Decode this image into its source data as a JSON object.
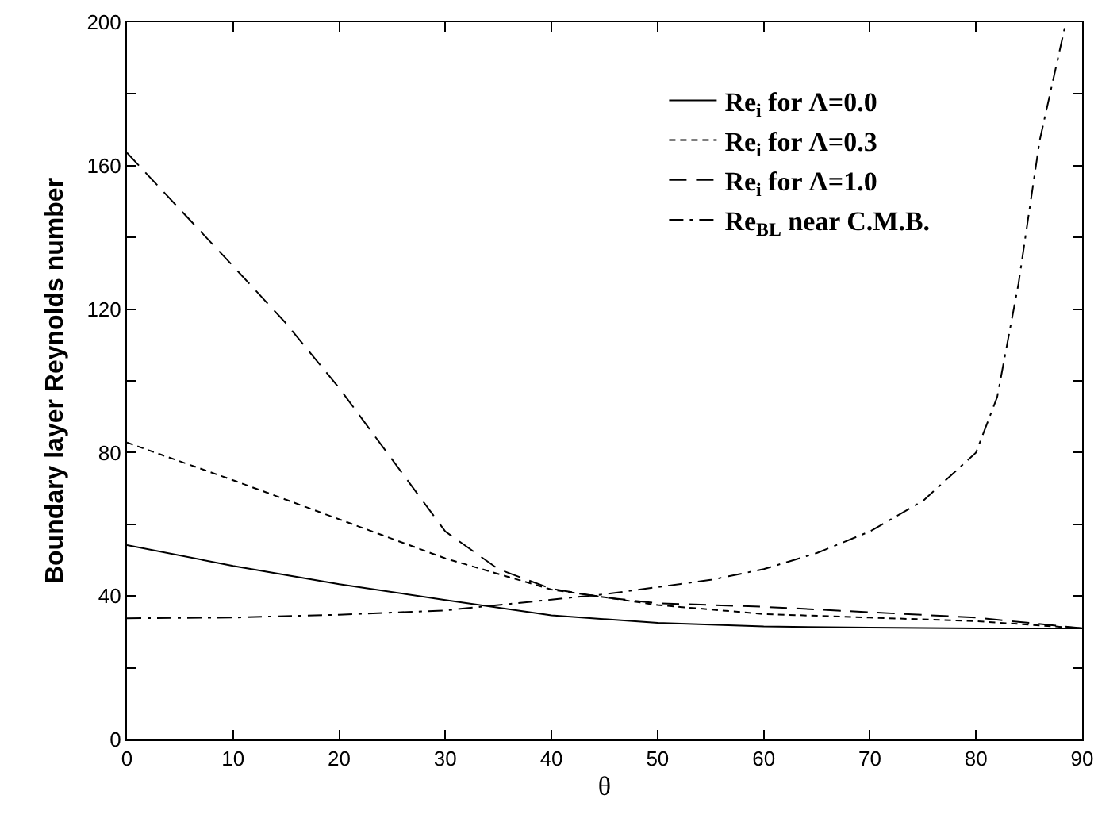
{
  "chart_data": {
    "type": "line",
    "xlabel": "θ",
    "ylabel": "Boundary layer Reynolds number",
    "xlim": [
      0,
      90
    ],
    "xticks": [
      0,
      10,
      20,
      30,
      40,
      50,
      60,
      70,
      80,
      90
    ],
    "ylim": [
      0,
      200
    ],
    "yticks": [
      0,
      {
        "value": 20,
        "label": null
      },
      40,
      {
        "value": 60,
        "label": null
      },
      80,
      {
        "value": 100,
        "label": null
      },
      120,
      {
        "value": 140,
        "label": null
      },
      160,
      {
        "value": 180,
        "label": null
      },
      200
    ],
    "grid": false,
    "legend": "top right",
    "marker": "none",
    "series": [
      {
        "name": "Re$_{i}$ for Λ=0.0",
        "color": "#000000",
        "line_style": "solid",
        "x": [
          0,
          10,
          20,
          30,
          40,
          50,
          60,
          70,
          80,
          90
        ],
        "values": [
          54.2,
          48.4,
          43.3,
          38.9,
          34.6,
          32.5,
          31.5,
          31.2,
          31,
          31
        ]
      },
      {
        "name": "Re$_{i}$ for Λ=0.3",
        "color": "#000000",
        "line_style": "dotted",
        "x": [
          0,
          10,
          20,
          30,
          40,
          50,
          60,
          70,
          80,
          90
        ],
        "values": [
          82.8,
          72.3,
          61.4,
          50.5,
          41.8,
          37.5,
          35,
          34,
          33,
          31
        ]
      },
      {
        "name": "Re$_{i}$ for Λ=1.0",
        "color": "#000000",
        "line_style": "dashed",
        "x": [
          0,
          5,
          10,
          15,
          20,
          25,
          30,
          35,
          40,
          45,
          50,
          60,
          70,
          80,
          90
        ],
        "values": [
          163.6,
          147.8,
          132,
          116,
          98,
          78,
          58,
          47.5,
          42,
          39.6,
          38,
          37,
          35.5,
          34,
          31
        ]
      },
      {
        "name": "Re$_{BL}$ near C.M.B.",
        "color": "#000000",
        "line_style": "dashdot",
        "x": [
          0,
          10,
          20,
          30,
          35,
          40,
          45,
          50,
          55,
          60,
          65,
          70,
          75,
          80,
          82,
          84,
          86,
          88.4
        ],
        "values": [
          33.8,
          34,
          34.8,
          36,
          37.5,
          39,
          40.5,
          42.5,
          44.5,
          47.5,
          52,
          58,
          66.5,
          80,
          95.5,
          127,
          167,
          199
        ]
      }
    ]
  }
}
